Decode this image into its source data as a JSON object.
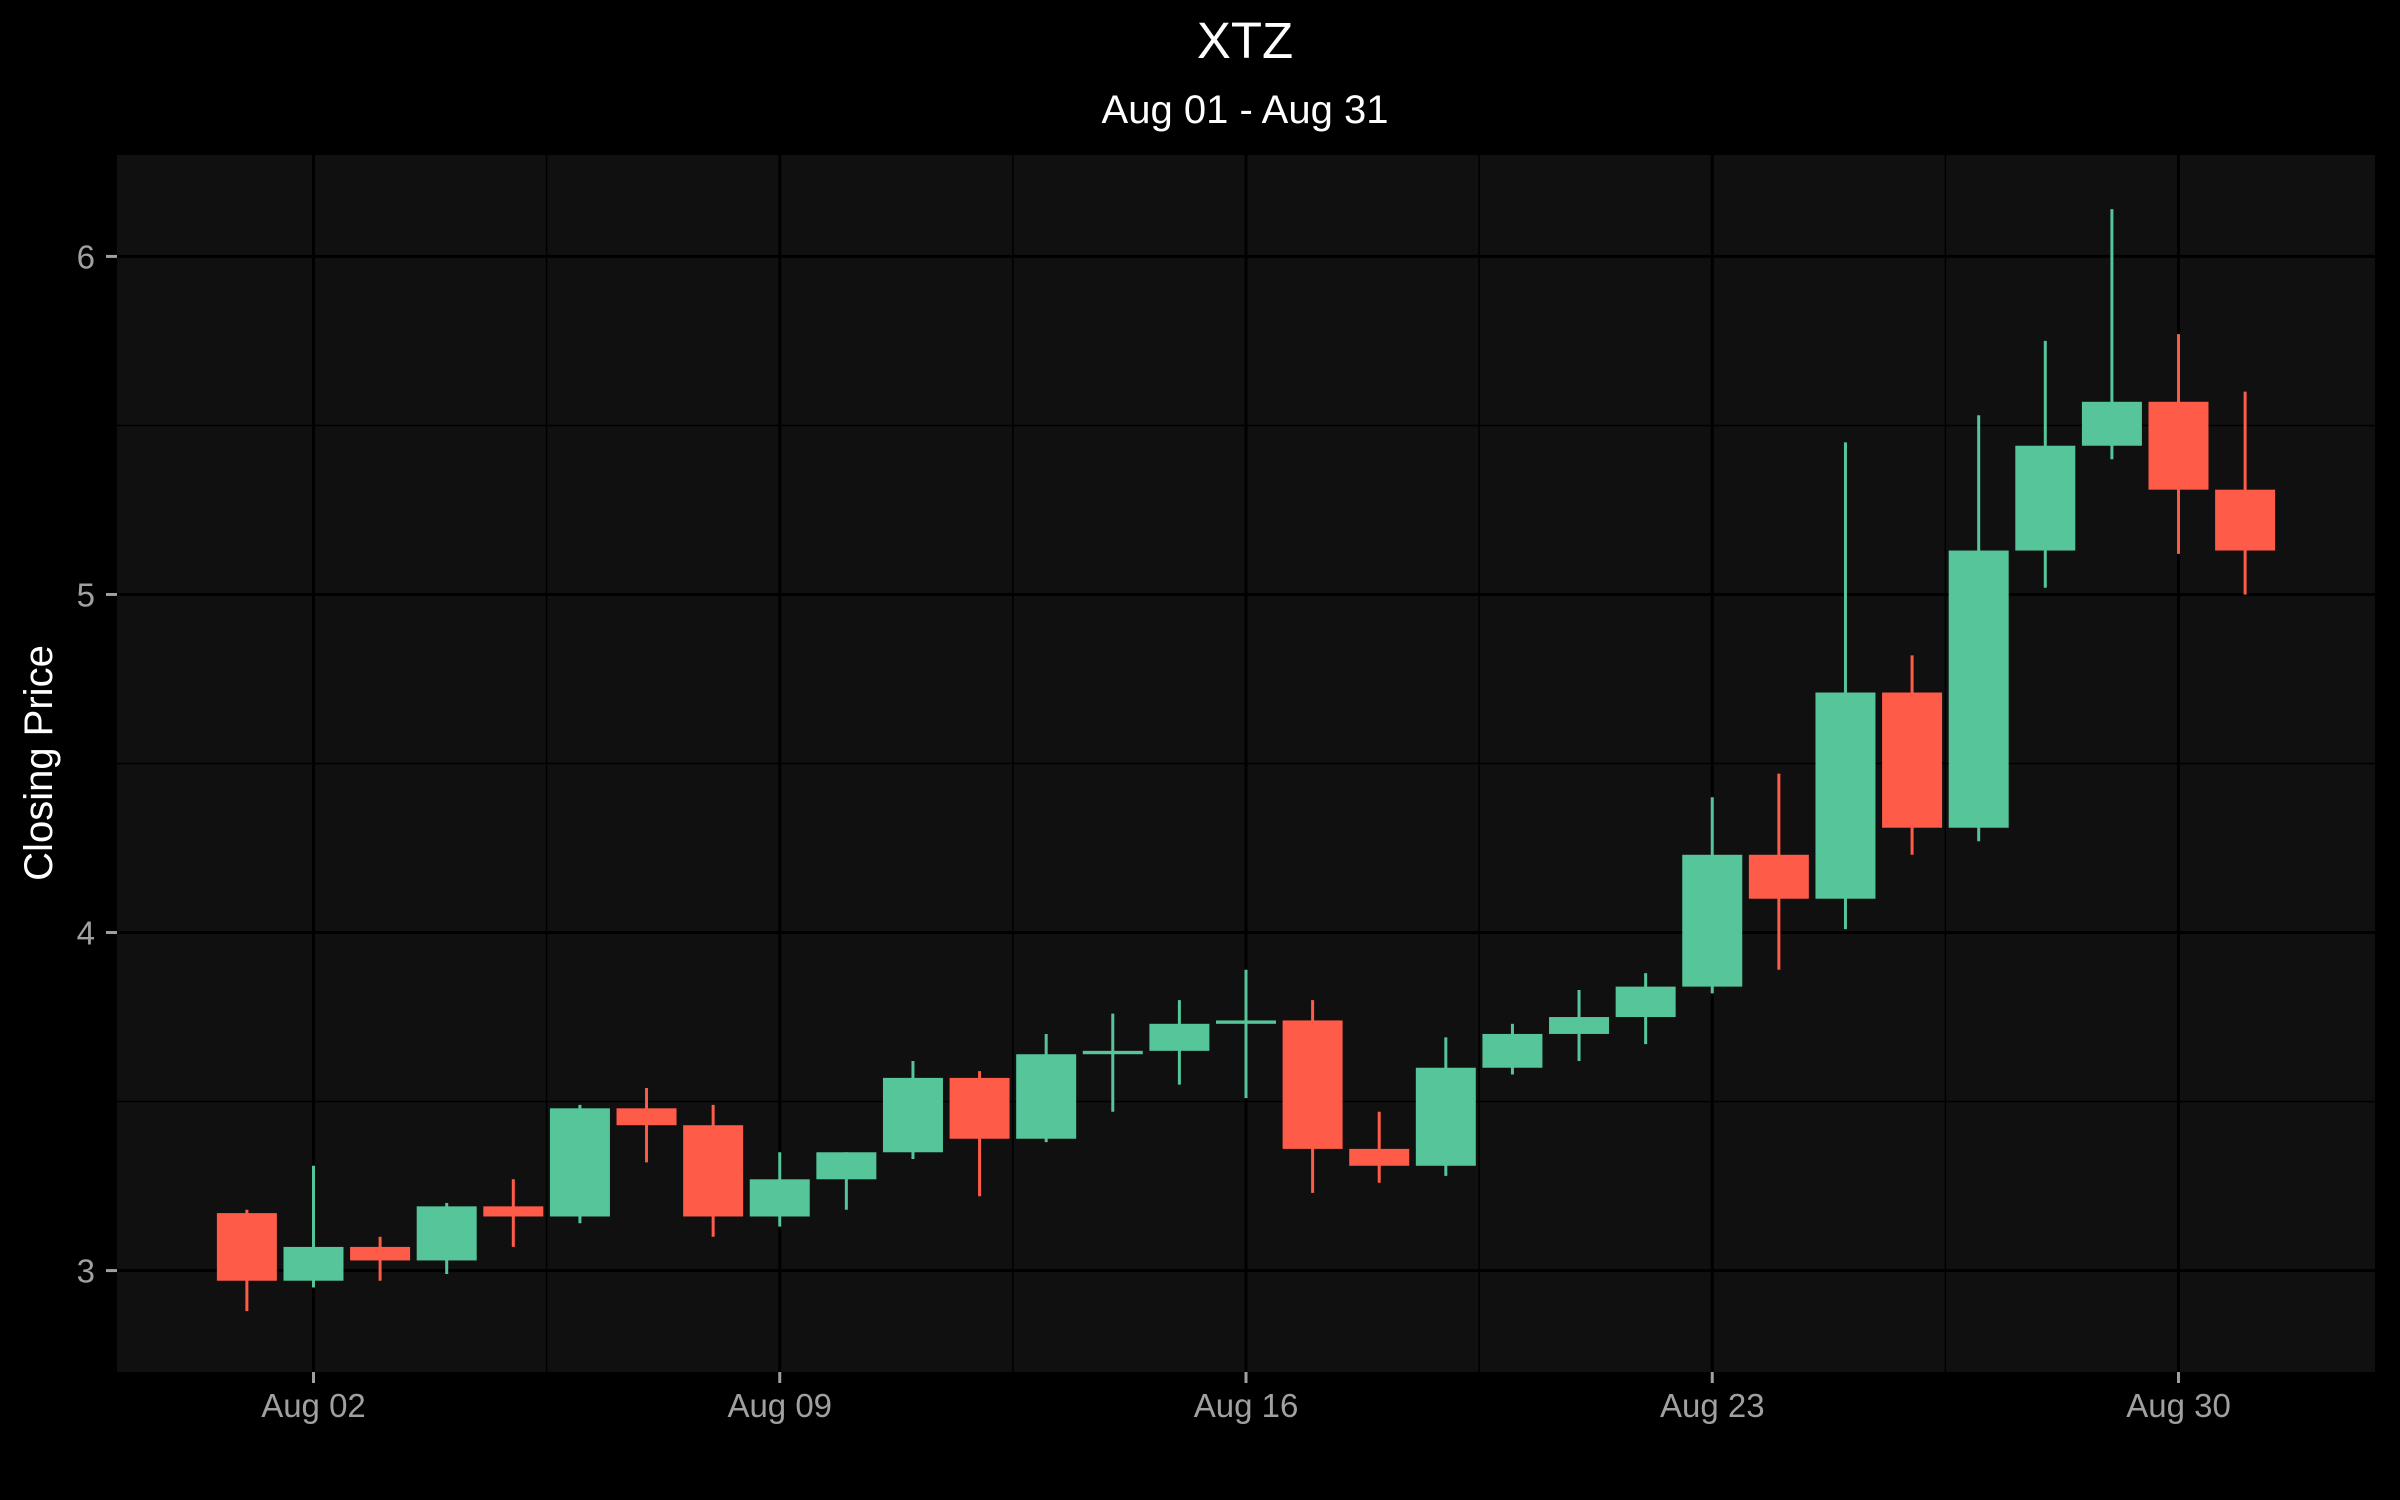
{
  "chart_data": {
    "type": "candlestick",
    "title": "XTZ",
    "subtitle": "Aug 01 - Aug 31",
    "xlabel": "",
    "ylabel": "Closing Price",
    "x_ticks": [
      {
        "day": 2,
        "label": "Aug 02"
      },
      {
        "day": 9,
        "label": "Aug 09"
      },
      {
        "day": 16,
        "label": "Aug 16"
      },
      {
        "day": 23,
        "label": "Aug 23"
      },
      {
        "day": 30,
        "label": "Aug 30"
      }
    ],
    "y_ticks": [
      3,
      4,
      5,
      6
    ],
    "ylim": [
      2.7,
      6.3
    ],
    "xlim": [
      -0.95,
      32.95
    ],
    "grid": true,
    "colors": {
      "background": "#000000",
      "panel": "#101010",
      "grid": "#000000",
      "up": "#56c59a",
      "down": "#fe5b48"
    },
    "candles": [
      {
        "day": 1,
        "open": 3.17,
        "high": 3.18,
        "low": 2.88,
        "close": 2.97
      },
      {
        "day": 2,
        "open": 2.97,
        "high": 3.31,
        "low": 2.95,
        "close": 3.07
      },
      {
        "day": 3,
        "open": 3.07,
        "high": 3.1,
        "low": 2.97,
        "close": 3.03
      },
      {
        "day": 4,
        "open": 3.03,
        "high": 3.2,
        "low": 2.99,
        "close": 3.19
      },
      {
        "day": 5,
        "open": 3.19,
        "high": 3.27,
        "low": 3.07,
        "close": 3.16
      },
      {
        "day": 6,
        "open": 3.16,
        "high": 3.49,
        "low": 3.14,
        "close": 3.48
      },
      {
        "day": 7,
        "open": 3.48,
        "high": 3.54,
        "low": 3.32,
        "close": 3.43
      },
      {
        "day": 8,
        "open": 3.43,
        "high": 3.49,
        "low": 3.1,
        "close": 3.16
      },
      {
        "day": 9,
        "open": 3.16,
        "high": 3.35,
        "low": 3.13,
        "close": 3.27
      },
      {
        "day": 10,
        "open": 3.27,
        "high": 3.35,
        "low": 3.18,
        "close": 3.35
      },
      {
        "day": 11,
        "open": 3.35,
        "high": 3.62,
        "low": 3.33,
        "close": 3.57
      },
      {
        "day": 12,
        "open": 3.57,
        "high": 3.59,
        "low": 3.22,
        "close": 3.39
      },
      {
        "day": 13,
        "open": 3.39,
        "high": 3.7,
        "low": 3.38,
        "close": 3.64
      },
      {
        "day": 14,
        "open": 3.64,
        "high": 3.76,
        "low": 3.47,
        "close": 3.65
      },
      {
        "day": 15,
        "open": 3.65,
        "high": 3.8,
        "low": 3.55,
        "close": 3.73
      },
      {
        "day": 16,
        "open": 3.73,
        "high": 3.89,
        "low": 3.51,
        "close": 3.74
      },
      {
        "day": 17,
        "open": 3.74,
        "high": 3.8,
        "low": 3.23,
        "close": 3.36
      },
      {
        "day": 18,
        "open": 3.36,
        "high": 3.47,
        "low": 3.26,
        "close": 3.31
      },
      {
        "day": 19,
        "open": 3.31,
        "high": 3.69,
        "low": 3.28,
        "close": 3.6
      },
      {
        "day": 20,
        "open": 3.6,
        "high": 3.73,
        "low": 3.58,
        "close": 3.7
      },
      {
        "day": 21,
        "open": 3.7,
        "high": 3.83,
        "low": 3.62,
        "close": 3.75
      },
      {
        "day": 22,
        "open": 3.75,
        "high": 3.88,
        "low": 3.67,
        "close": 3.84
      },
      {
        "day": 23,
        "open": 3.84,
        "high": 4.4,
        "low": 3.82,
        "close": 4.23
      },
      {
        "day": 24,
        "open": 4.23,
        "high": 4.47,
        "low": 3.89,
        "close": 4.1
      },
      {
        "day": 25,
        "open": 4.1,
        "high": 5.45,
        "low": 4.01,
        "close": 4.71
      },
      {
        "day": 26,
        "open": 4.71,
        "high": 4.82,
        "low": 4.23,
        "close": 4.31
      },
      {
        "day": 27,
        "open": 4.31,
        "high": 5.53,
        "low": 4.27,
        "close": 5.13
      },
      {
        "day": 28,
        "open": 5.13,
        "high": 5.75,
        "low": 5.02,
        "close": 5.44
      },
      {
        "day": 29,
        "open": 5.44,
        "high": 6.14,
        "low": 5.4,
        "close": 5.57
      },
      {
        "day": 30,
        "open": 5.57,
        "high": 5.77,
        "low": 5.12,
        "close": 5.31
      },
      {
        "day": 31,
        "open": 5.31,
        "high": 5.6,
        "low": 5.0,
        "close": 5.13
      }
    ]
  }
}
